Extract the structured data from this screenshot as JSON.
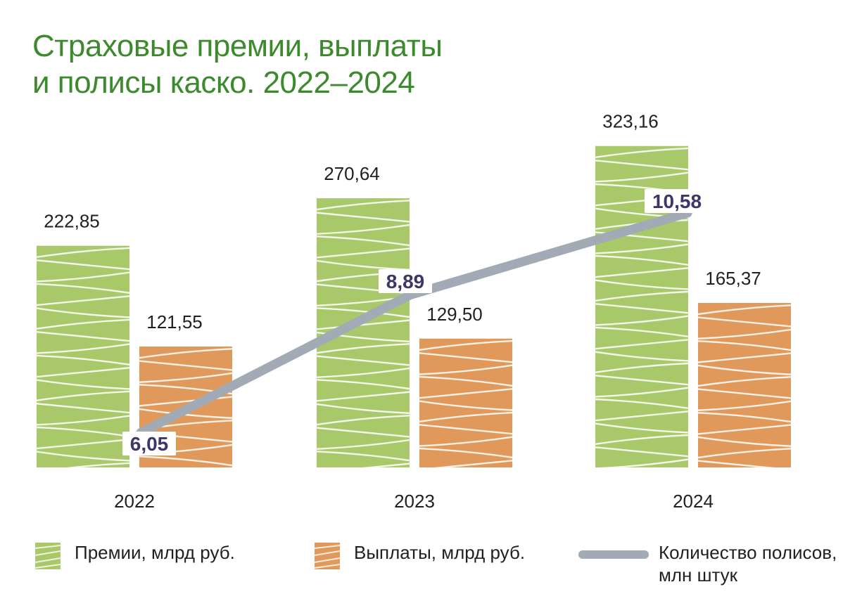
{
  "title": [
    "Страховые премии, выплаты",
    "и полисы каско. 2022–2024"
  ],
  "colors": {
    "title": "#3d8a2e",
    "premiums": "#a8c86a",
    "payouts": "#e0995a",
    "policies": "#a2aab5",
    "policy_labels": "#3d3668",
    "text": "#231f20"
  },
  "legend": [
    {
      "lines": [
        "Премии, млрд руб."
      ],
      "icon": "green-hatched-swatch"
    },
    {
      "lines": [
        "Выплаты, млрд руб."
      ],
      "icon": "orange-hatched-swatch"
    },
    {
      "lines": [
        "Количество полисов,",
        "млн штук"
      ],
      "icon": "gray-line-swatch"
    }
  ],
  "chart_data": {
    "type": "bar",
    "categories": [
      "2022",
      "2023",
      "2024"
    ],
    "series": [
      {
        "name": "Премии, млрд руб.",
        "type": "bar",
        "values": [
          222.85,
          270.64,
          323.16
        ],
        "labels": [
          "222,85",
          "270,64",
          "323,16"
        ]
      },
      {
        "name": "Выплаты, млрд руб.",
        "type": "bar",
        "values": [
          121.55,
          129.5,
          165.37
        ],
        "labels": [
          "121,55",
          "129,50",
          "165,37"
        ]
      },
      {
        "name": "Количество полисов, млн штук",
        "type": "line",
        "values": [
          6.05,
          8.89,
          10.58
        ],
        "labels": [
          "6,05",
          "8,89",
          "10,58"
        ]
      }
    ],
    "grid": false,
    "legend_position": "bottom"
  }
}
